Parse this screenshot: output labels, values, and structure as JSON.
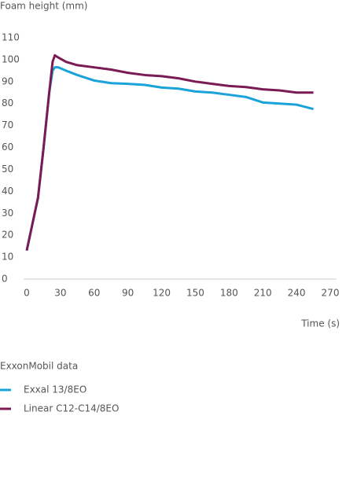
{
  "chart_data": {
    "type": "line",
    "y_label": "Foam height (mm)",
    "x_label": "Time (s)",
    "legend_title": "ExxonMobil data",
    "x": [
      0,
      5,
      10,
      15,
      20,
      23,
      25,
      28,
      35,
      45,
      60,
      75,
      90,
      105,
      120,
      135,
      150,
      165,
      180,
      195,
      210,
      225,
      240,
      255
    ],
    "series": [
      {
        "name": "Exxal 13/8EO",
        "color": "#1aa3d9",
        "values": [
          13,
          25,
          37,
          60,
          85,
          95,
          96.5,
          96.5,
          95,
          93,
          90.5,
          89.3,
          89,
          88.5,
          87.3,
          86.8,
          85.5,
          85,
          84,
          83,
          80.5,
          80,
          79.5,
          77.5
        ]
      },
      {
        "name": "Linear C12-C14/8EO",
        "color": "#7b1b55",
        "values": [
          13,
          25,
          37,
          60,
          85,
          99,
          102,
          101,
          99,
          97.5,
          96.5,
          95.5,
          94,
          93,
          92.5,
          91.5,
          90,
          89,
          88,
          87.5,
          86.5,
          86,
          85,
          85
        ]
      }
    ],
    "xlim": [
      0,
      270
    ],
    "xticks": [
      0,
      30,
      60,
      90,
      120,
      150,
      180,
      210,
      240,
      270
    ],
    "ylim": [
      0,
      110
    ],
    "yticks": [
      0,
      10,
      20,
      30,
      40,
      50,
      60,
      70,
      80,
      90,
      100,
      110
    ]
  }
}
